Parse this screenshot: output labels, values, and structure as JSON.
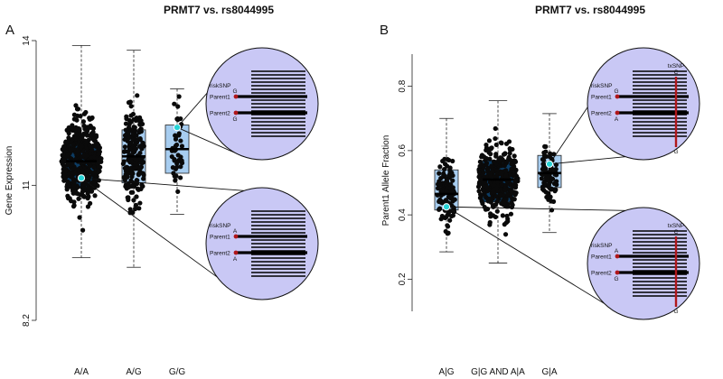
{
  "chart_data": [
    {
      "panel": "A",
      "type": "boxplot",
      "title": "PRMT7 vs. rs8044995",
      "ylabel": "Gene Expression",
      "xlabel": "",
      "ylim": [
        8.2,
        14
      ],
      "yticks": [
        8.2,
        11,
        14
      ],
      "categories": [
        "A/A",
        "A/G",
        "G/G"
      ],
      "boxes": [
        {
          "category": "A/A",
          "q1": 10.95,
          "median": 11.5,
          "q3": 11.85,
          "whisker_low": 9.5,
          "whisker_high": 13.9,
          "fill": "#0d3c63",
          "n": 420
        },
        {
          "category": "A/G",
          "q1": 11.05,
          "median": 11.6,
          "q3": 12.15,
          "whisker_low": 9.3,
          "whisker_high": 13.8,
          "fill": "#a7cdf0",
          "n": 190
        },
        {
          "category": "G/G",
          "q1": 11.25,
          "median": 11.75,
          "q3": 12.25,
          "whisker_low": 10.4,
          "whisker_high": 13.0,
          "fill": "#a7cdf0",
          "n": 45
        }
      ],
      "highlighted_points": [
        {
          "category": "A/A",
          "y": 11.15
        },
        {
          "category": "G/G",
          "y": 12.2
        }
      ],
      "insets": [
        {
          "anchor_category": "G/G",
          "risk_label": "riskSNP",
          "risk_allele_top": "G",
          "parent1": "Parent1",
          "parent2": "Parent2",
          "risk_allele_bottom": "G",
          "tx_label": "",
          "tx_top": "",
          "tx_bottom": ""
        },
        {
          "anchor_category": "A/A",
          "risk_label": "riskSNP",
          "risk_allele_top": "A",
          "parent1": "Parent1",
          "parent2": "Parent2",
          "risk_allele_bottom": "A",
          "tx_label": "",
          "tx_top": "",
          "tx_bottom": ""
        }
      ]
    },
    {
      "panel": "B",
      "type": "boxplot",
      "title": "PRMT7 vs. rs8044995",
      "ylabel": "Parent1 Allele Fraction",
      "xlabel": "",
      "ylim": [
        0.1,
        0.9
      ],
      "yticks": [
        0.2,
        0.4,
        0.6,
        0.8
      ],
      "categories": [
        "A|G",
        "G|G AND A|A",
        "G|A"
      ],
      "boxes": [
        {
          "category": "A|G",
          "q1": 0.415,
          "median": 0.465,
          "q3": 0.54,
          "whisker_low": 0.285,
          "whisker_high": 0.7,
          "fill": "#a7cdf0",
          "n": 110
        },
        {
          "category": "G|G AND A|A",
          "q1": 0.44,
          "median": 0.51,
          "q3": 0.57,
          "whisker_low": 0.25,
          "whisker_high": 0.755,
          "fill": "#0d3c63",
          "n": 330
        },
        {
          "category": "G|A",
          "q1": 0.485,
          "median": 0.53,
          "q3": 0.585,
          "whisker_low": 0.345,
          "whisker_high": 0.715,
          "fill": "#a7cdf0",
          "n": 90
        }
      ],
      "highlighted_points": [
        {
          "category": "A|G",
          "y": 0.425
        },
        {
          "category": "G|A",
          "y": 0.558
        }
      ],
      "insets": [
        {
          "anchor_category": "G|A",
          "risk_label": "riskSNP",
          "risk_allele_top": "G",
          "parent1": "Parent1",
          "parent2": "Parent2",
          "risk_allele_bottom": "A",
          "tx_label": "txSNP",
          "tx_top": "C",
          "tx_bottom": "G"
        },
        {
          "anchor_category": "A|G",
          "risk_label": "riskSNP",
          "risk_allele_top": "A",
          "parent1": "Parent1",
          "parent2": "Parent2",
          "risk_allele_bottom": "G",
          "tx_label": "txSNP",
          "tx_top": "C",
          "tx_bottom": "G"
        }
      ]
    }
  ],
  "colors": {
    "dot": "#0a0a0a",
    "highlight": "#27d3d6",
    "dark_box": "#0d3c63",
    "light_box": "#a7cdf0",
    "inset_fill": "#c9c8f5",
    "snp_red": "#b0171b"
  }
}
